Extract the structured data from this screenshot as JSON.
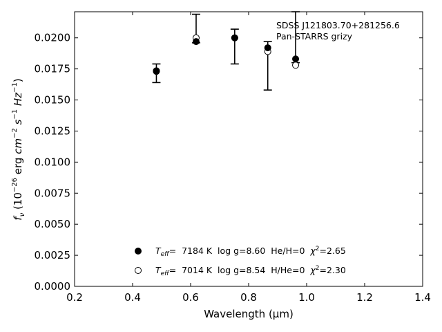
{
  "chart_data": {
    "type": "scatter",
    "title": "",
    "xlabel": "Wavelength (μm)",
    "ylabel_parts": {
      "f": "f",
      "nu": "ν",
      "open": " (10",
      "exp26": "−26",
      "erg": " erg ",
      "cm": "cm",
      "exp2": "−2",
      "s": " s",
      "exp1a": "−1",
      "hz": " Hz",
      "exp1b": "−1",
      "close": ")"
    },
    "xlim": [
      0.2,
      1.4
    ],
    "ylim": [
      0.0,
      0.0221
    ],
    "xticks": [
      0.2,
      0.4,
      0.6,
      0.8,
      1.0,
      1.2,
      1.4
    ],
    "xtick_labels": [
      "0.2",
      "0.4",
      "0.6",
      "0.8",
      "1.0",
      "1.2",
      "1.4"
    ],
    "yticks": [
      0.0,
      0.0025,
      0.005,
      0.0075,
      0.01,
      0.0125,
      0.015,
      0.0175,
      0.02
    ],
    "ytick_labels": [
      "0.0000",
      "0.0025",
      "0.0050",
      "0.0075",
      "0.0100",
      "0.0125",
      "0.0150",
      "0.0175",
      "0.0200"
    ],
    "grid": false,
    "annotation": {
      "line1": "SDSS J121803.70+281256.6",
      "line2": "Pan-STARRS grizy"
    },
    "observed": {
      "x": [
        0.482,
        0.619,
        0.752,
        0.866,
        0.962
      ],
      "y": [
        0.0172,
        0.0197,
        0.02,
        0.019,
        0.0183
      ],
      "err_low": [
        0.0164,
        0.0196,
        0.0179,
        0.0158,
        0.018
      ],
      "err_high": [
        0.0179,
        0.0219,
        0.0207,
        0.0197,
        0.0221
      ]
    },
    "series": [
      {
        "marker": "filled",
        "values": [
          0.01735,
          0.0197,
          0.02,
          0.0192,
          0.0183
        ],
        "legend": {
          "teff": "7184 K",
          "logg": "log g=8.60",
          "comp": "He/H=0",
          "chi2": "=2.65"
        }
      },
      {
        "marker": "open",
        "values": [
          0.0173,
          0.02,
          0.02,
          0.0189,
          0.0178
        ],
        "legend": {
          "teff": "7014 K",
          "logg": "log g=8.54",
          "comp": "H/He=0",
          "chi2": "=2.30"
        }
      }
    ],
    "legend_symbols": {
      "T": "T",
      "eff": "eff",
      "eq": "=  ",
      "chi": "χ",
      "sq": "2"
    },
    "legend_position": "lower-center"
  }
}
